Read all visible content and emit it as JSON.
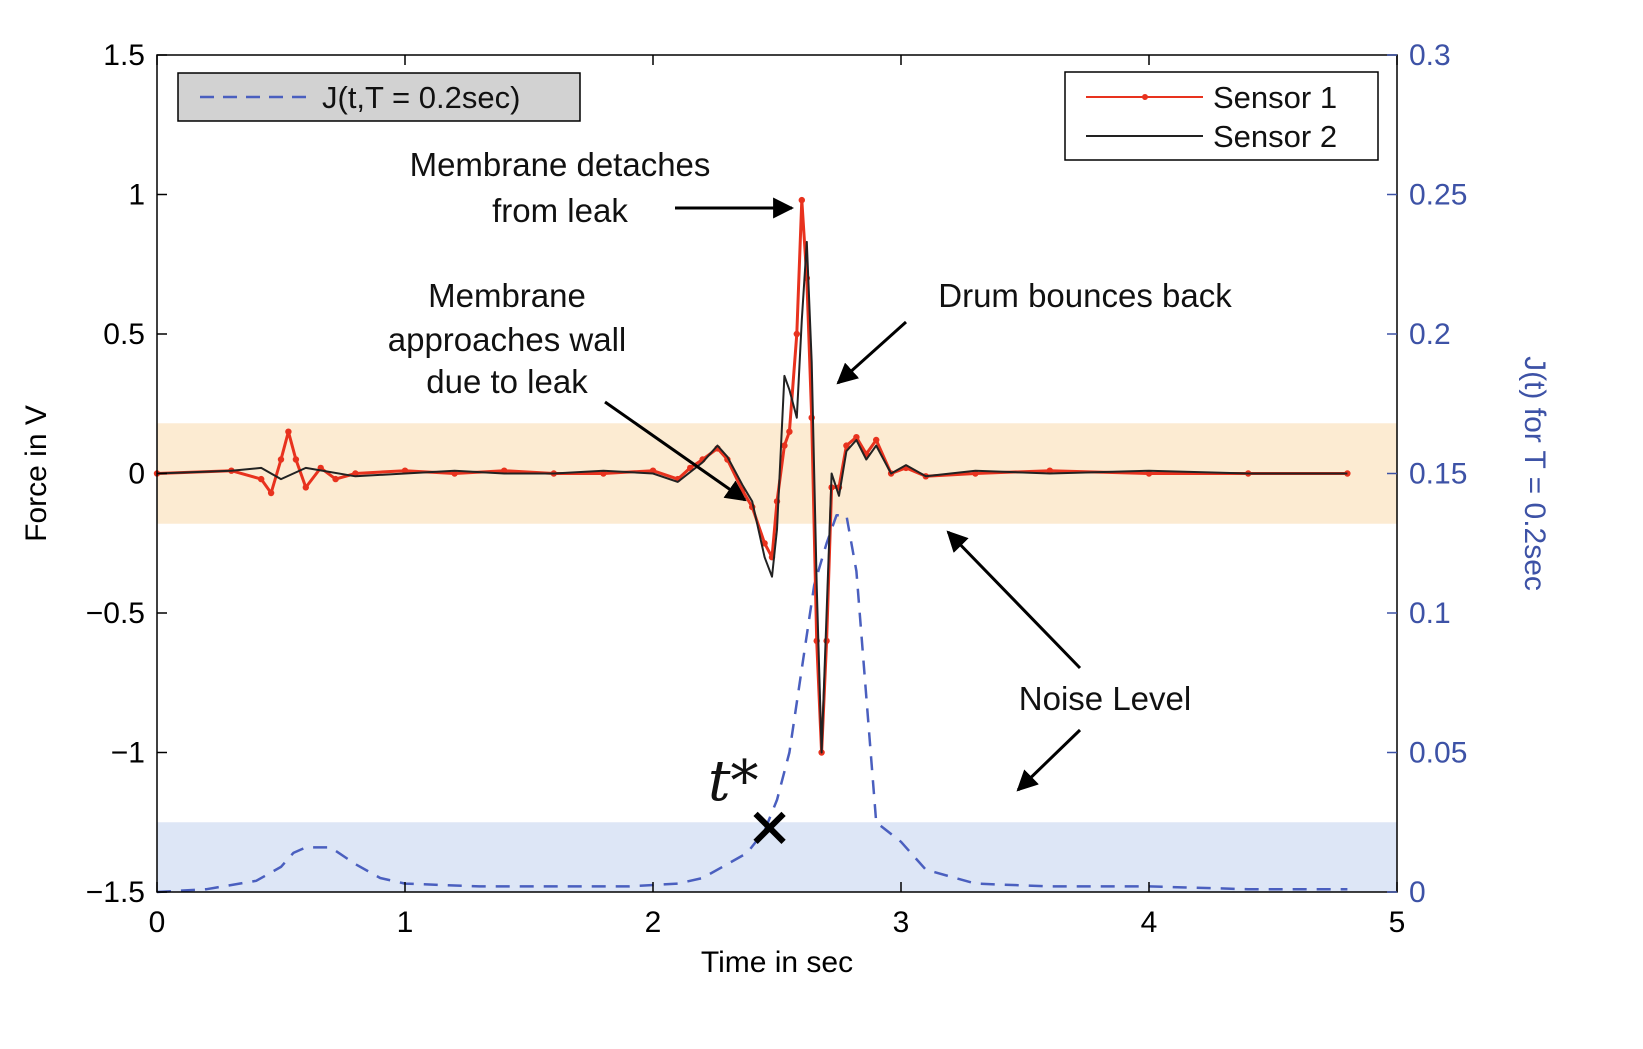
{
  "chart_data": {
    "type": "line",
    "xlabel": "Time in sec",
    "ylabel_left": "Force in V",
    "ylabel_right": "J(t) for T = 0.2sec",
    "xlim": [
      0,
      5
    ],
    "ylim_left": [
      -1.5,
      1.5
    ],
    "ylim_right": [
      0,
      0.3
    ],
    "x_ticks": [
      "0",
      "1",
      "2",
      "3",
      "4",
      "5"
    ],
    "y_left_ticks": [
      "1.5",
      "1",
      "0.5",
      "0",
      "−0.5",
      "−1",
      "−1.5"
    ],
    "y_right_ticks": [
      "0.3",
      "0.25",
      "0.2",
      "0.15",
      "0.1",
      "0.05",
      "0"
    ],
    "grid": false,
    "legend_main": {
      "placement": "top-right",
      "entries": [
        "Sensor 1",
        "Sensor 2"
      ]
    },
    "legend_j": {
      "placement": "top-left",
      "entries": [
        "J(t,T = 0.2sec)"
      ]
    },
    "noise_band_force": [
      -0.18,
      0.18
    ],
    "noise_band_J": [
      0,
      0.025
    ],
    "series": [
      {
        "name": "Sensor 1",
        "axis": "left",
        "color": "#e8321e",
        "style": "solid-dots",
        "x": [
          0,
          0.3,
          0.42,
          0.46,
          0.5,
          0.53,
          0.56,
          0.6,
          0.66,
          0.72,
          0.8,
          1.0,
          1.2,
          1.4,
          1.6,
          1.8,
          2.0,
          2.1,
          2.15,
          2.2,
          2.26,
          2.3,
          2.36,
          2.4,
          2.45,
          2.48,
          2.5,
          2.53,
          2.55,
          2.58,
          2.6,
          2.62,
          2.64,
          2.66,
          2.68,
          2.7,
          2.72,
          2.75,
          2.78,
          2.82,
          2.86,
          2.9,
          2.96,
          3.02,
          3.1,
          3.3,
          3.6,
          4.0,
          4.4,
          4.8
        ],
        "y": [
          0,
          0.01,
          -0.02,
          -0.07,
          0.05,
          0.15,
          0.05,
          -0.05,
          0.02,
          -0.02,
          0,
          0.01,
          0,
          0.01,
          0,
          0,
          0.01,
          -0.02,
          0.02,
          0.05,
          0.09,
          0.05,
          -0.06,
          -0.12,
          -0.25,
          -0.3,
          -0.1,
          0.1,
          0.15,
          0.5,
          0.98,
          0.7,
          0.2,
          -0.6,
          -1.0,
          -0.6,
          -0.05,
          -0.05,
          0.1,
          0.13,
          0.07,
          0.12,
          0,
          0.02,
          -0.01,
          0,
          0.01,
          0,
          0,
          0
        ]
      },
      {
        "name": "Sensor 2",
        "axis": "left",
        "color": "#222222",
        "style": "solid",
        "x": [
          0,
          0.3,
          0.42,
          0.5,
          0.6,
          0.8,
          1.0,
          1.2,
          1.4,
          1.6,
          1.8,
          2.0,
          2.1,
          2.2,
          2.26,
          2.3,
          2.36,
          2.4,
          2.45,
          2.48,
          2.5,
          2.53,
          2.55,
          2.58,
          2.6,
          2.62,
          2.64,
          2.66,
          2.68,
          2.7,
          2.72,
          2.75,
          2.78,
          2.82,
          2.86,
          2.9,
          2.96,
          3.02,
          3.1,
          3.3,
          3.6,
          4.0,
          4.4,
          4.8
        ],
        "y": [
          0,
          0.01,
          0.02,
          -0.02,
          0.02,
          -0.01,
          0,
          0.01,
          0,
          0,
          0.01,
          0,
          -0.03,
          0.04,
          0.1,
          0.06,
          -0.04,
          -0.1,
          -0.3,
          -0.37,
          -0.2,
          0.35,
          0.3,
          0.2,
          0.55,
          0.83,
          0.4,
          -0.4,
          -1.0,
          -0.5,
          0.0,
          -0.08,
          0.08,
          0.12,
          0.05,
          0.1,
          0,
          0.03,
          -0.01,
          0.01,
          0,
          0.01,
          0,
          0
        ]
      },
      {
        "name": "J(t,T = 0.2sec)",
        "axis": "right",
        "color": "#4a5fbf",
        "style": "dashed",
        "x": [
          0,
          0.2,
          0.4,
          0.5,
          0.55,
          0.6,
          0.7,
          0.8,
          0.9,
          1.0,
          1.3,
          1.6,
          1.9,
          2.1,
          2.2,
          2.3,
          2.38,
          2.45,
          2.5,
          2.55,
          2.6,
          2.65,
          2.7,
          2.74,
          2.78,
          2.82,
          2.86,
          2.9,
          3.0,
          3.1,
          3.3,
          3.6,
          4.0,
          4.4,
          4.8
        ],
        "y": [
          0,
          0.001,
          0.004,
          0.009,
          0.014,
          0.016,
          0.016,
          0.01,
          0.005,
          0.003,
          0.002,
          0.002,
          0.002,
          0.003,
          0.005,
          0.01,
          0.014,
          0.022,
          0.033,
          0.05,
          0.08,
          0.11,
          0.125,
          0.135,
          0.135,
          0.115,
          0.07,
          0.025,
          0.018,
          0.008,
          0.003,
          0.002,
          0.002,
          0.001,
          0.001
        ]
      }
    ],
    "markers": [
      {
        "label": "t*",
        "x": 2.47,
        "y_J": 0.023
      }
    ],
    "annotations": [
      {
        "text_lines": [
          "Membrane detaches",
          "from leak"
        ]
      },
      {
        "text_lines": [
          "Membrane",
          "approaches wall",
          "due to leak"
        ]
      },
      {
        "text_lines": [
          "Drum bounces back"
        ]
      },
      {
        "text_lines": [
          "Noise Level"
        ]
      }
    ]
  }
}
